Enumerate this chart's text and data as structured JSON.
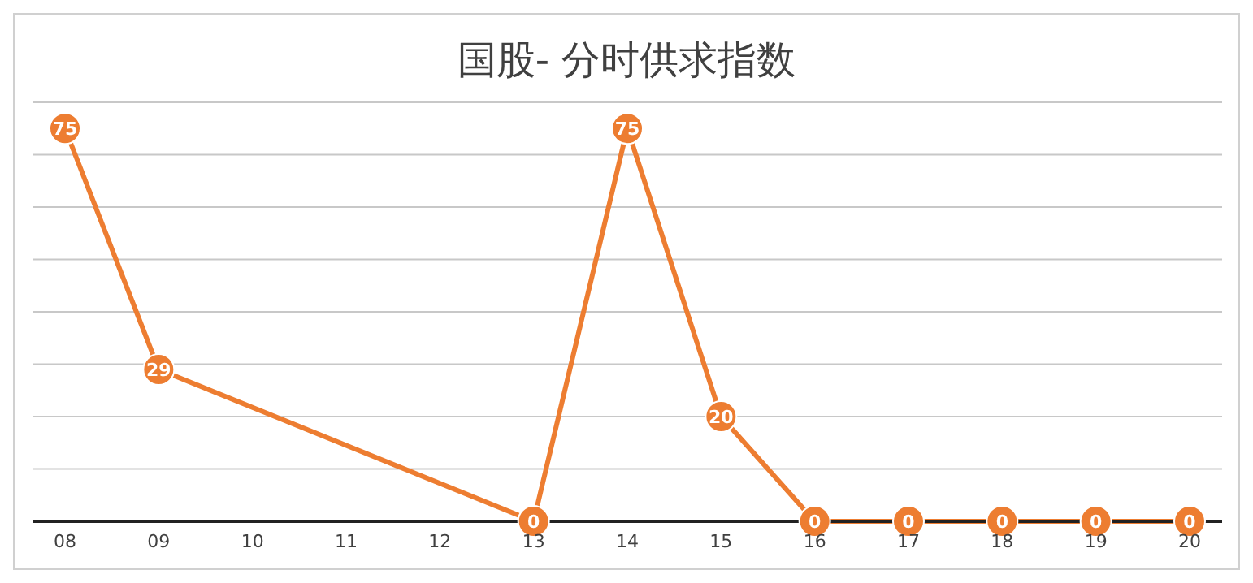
{
  "chart_data": {
    "type": "line",
    "title": "国股- 分时供求指数",
    "categories": [
      "08",
      "09",
      "10",
      "11",
      "12",
      "13",
      "14",
      "15",
      "16",
      "17",
      "18",
      "19",
      "20"
    ],
    "series": [
      {
        "color": "#ed7d31",
        "values": [
          75,
          29,
          null,
          null,
          null,
          0,
          75,
          20,
          0,
          0,
          0,
          0,
          0
        ]
      }
    ],
    "ylim": [
      0,
      80
    ],
    "yticks": [
      {
        "value": 0,
        "label": null
      },
      {
        "value": 10,
        "label": null
      },
      {
        "value": 20,
        "label": null
      },
      {
        "value": 30,
        "label": null
      },
      {
        "value": 40,
        "label": null
      },
      {
        "value": 50,
        "label": null
      },
      {
        "value": 60,
        "label": null
      },
      {
        "value": 70,
        "label": null
      },
      {
        "value": 80,
        "label": null
      }
    ],
    "grid": "y",
    "tick_labels": "x",
    "data_labels": true,
    "marker": "circle",
    "line_style": "solid",
    "legend": false
  }
}
